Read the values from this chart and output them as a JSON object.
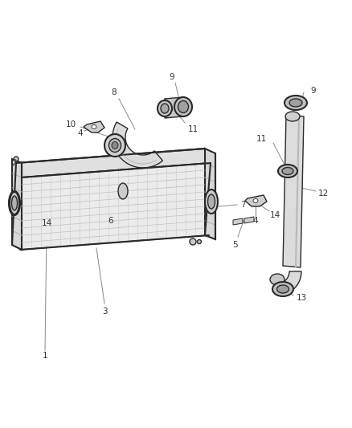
{
  "background_color": "#ffffff",
  "fig_width": 4.38,
  "fig_height": 5.33,
  "dpi": 100,
  "line_color": "#2a2a2a",
  "fill_light": "#f0f0f0",
  "fill_mid": "#d8d8d8",
  "fill_dark": "#b0b0b0",
  "text_color": "#333333",
  "label_fontsize": 7.5,
  "leader_color": "#888888"
}
